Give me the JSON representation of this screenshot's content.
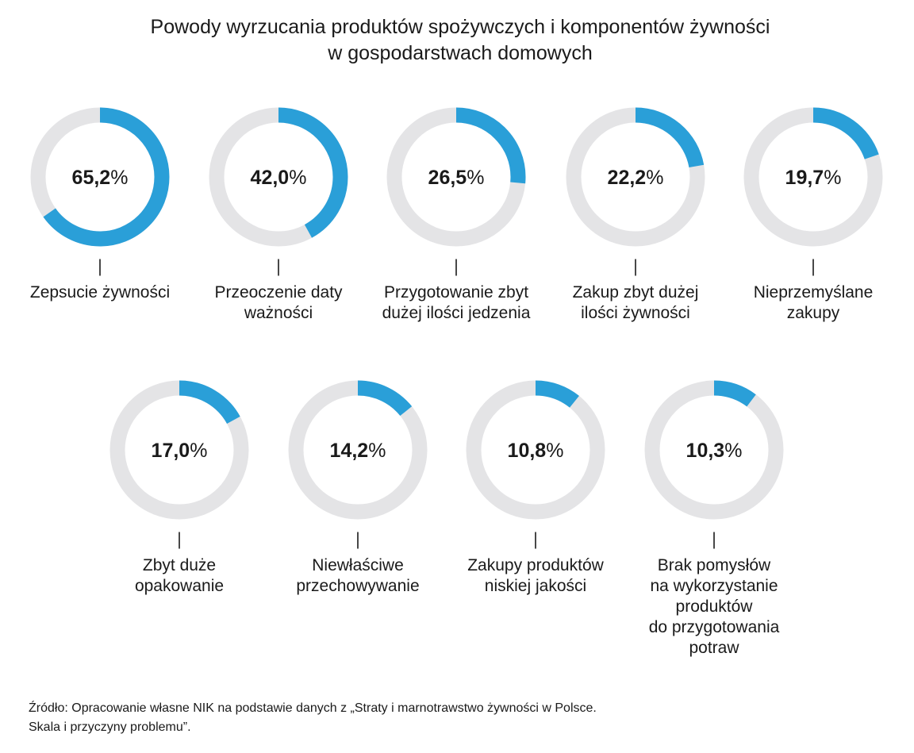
{
  "chart_data": {
    "type": "pie",
    "title": "Powody wyrzucania produktów spożywczych i komponentów żywności w gospodarstwach domowych",
    "title_lines": [
      "Powody wyrzucania produktów spożywczych i komponentów żywności",
      "w gospodarstwach domowych"
    ],
    "unit": "%",
    "max_value": 100,
    "colors": {
      "value": "#2a9fd8",
      "track": "#e4e4e6"
    },
    "items": [
      {
        "value": 65.2,
        "display_number": "65,2",
        "label_lines": [
          "Zepsucie żywności"
        ]
      },
      {
        "value": 42.0,
        "display_number": "42,0",
        "label_lines": [
          "Przeoczenie daty",
          "ważności"
        ]
      },
      {
        "value": 26.5,
        "display_number": "26,5",
        "label_lines": [
          "Przygotowanie zbyt",
          "dużej ilości jedzenia"
        ]
      },
      {
        "value": 22.2,
        "display_number": "22,2",
        "label_lines": [
          "Zakup zbyt dużej",
          "ilości żywności"
        ]
      },
      {
        "value": 19.7,
        "display_number": "19,7",
        "label_lines": [
          "Nieprzemyślane",
          "zakupy"
        ]
      },
      {
        "value": 17.0,
        "display_number": "17,0",
        "label_lines": [
          "Zbyt duże",
          "opakowanie"
        ]
      },
      {
        "value": 14.2,
        "display_number": "14,2",
        "label_lines": [
          "Niewłaściwe",
          "przechowywanie"
        ]
      },
      {
        "value": 10.8,
        "display_number": "10,8",
        "label_lines": [
          "Zakupy produktów",
          "niskiej jakości"
        ]
      },
      {
        "value": 10.3,
        "display_number": "10,3",
        "label_lines": [
          "Brak pomysłów",
          "na wykorzystanie",
          "produktów",
          "do przygotowania",
          "potraw"
        ]
      }
    ]
  },
  "source_lines": [
    "Źródło: Opracowanie własne NIK na podstawie danych z „Straty i marnotrawstwo żywności w Polsce.",
    "Skala i przyczyny problemu”."
  ]
}
